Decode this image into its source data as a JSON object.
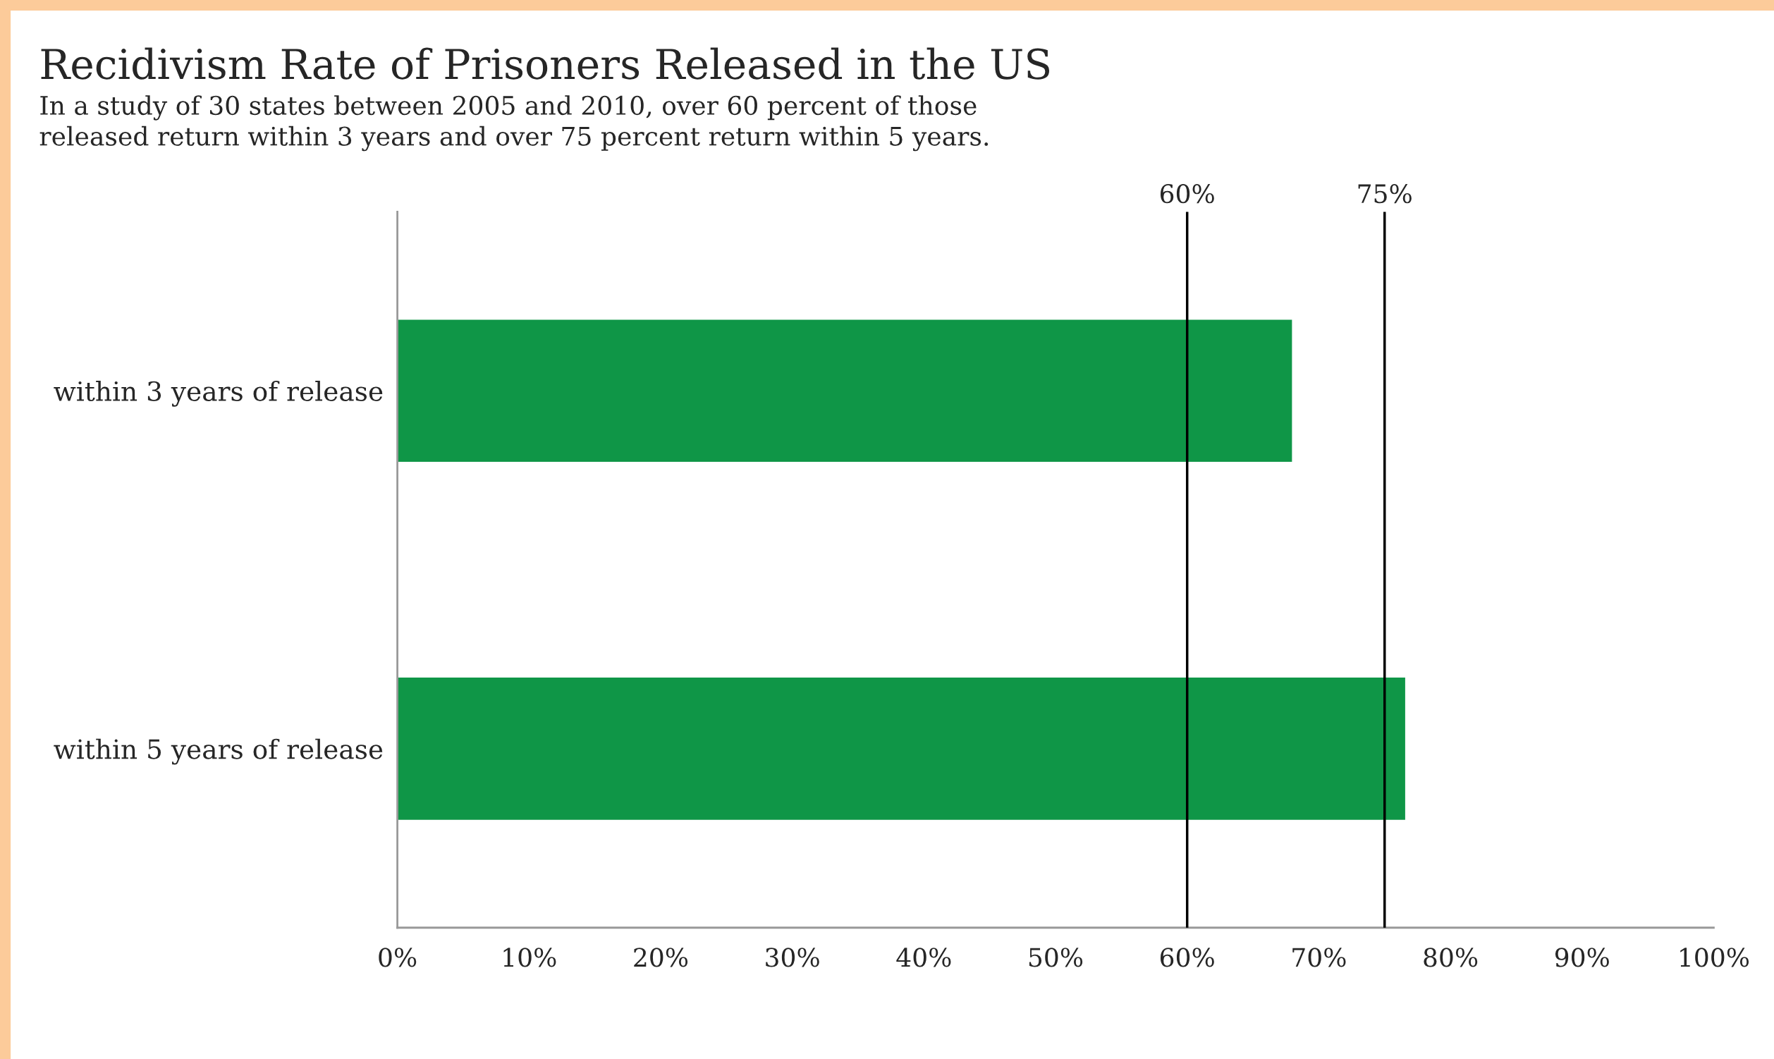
{
  "chart_data": {
    "type": "bar",
    "orientation": "horizontal",
    "title": "Recidivism Rate of Prisoners Released in the US",
    "subtitle": "In a study of 30 states between 2005 and 2010, over 60 percent of those\nreleased return within 3 years and over 75 percent return within 5 years.",
    "categories": [
      "within 3 years of release",
      "within 5 years of release"
    ],
    "values": [
      68,
      76.6
    ],
    "color": "#0f9647",
    "xlim": [
      0,
      100
    ],
    "xticks": [
      {
        "value": 0,
        "label": "0%"
      },
      {
        "value": 10,
        "label": "10%"
      },
      {
        "value": 20,
        "label": "20%"
      },
      {
        "value": 30,
        "label": "30%"
      },
      {
        "value": 40,
        "label": "40%"
      },
      {
        "value": 50,
        "label": "50%"
      },
      {
        "value": 60,
        "label": "60%"
      },
      {
        "value": 70,
        "label": "70%"
      },
      {
        "value": 80,
        "label": "80%"
      },
      {
        "value": 90,
        "label": "90%"
      },
      {
        "value": 100,
        "label": "100%"
      }
    ],
    "ref_lines": [
      {
        "axis": "x",
        "value": 60,
        "label": "60%",
        "color": "#000000"
      },
      {
        "axis": "x",
        "value": 75,
        "label": "75%",
        "color": "#000000"
      }
    ],
    "grid": false,
    "legend": false
  }
}
